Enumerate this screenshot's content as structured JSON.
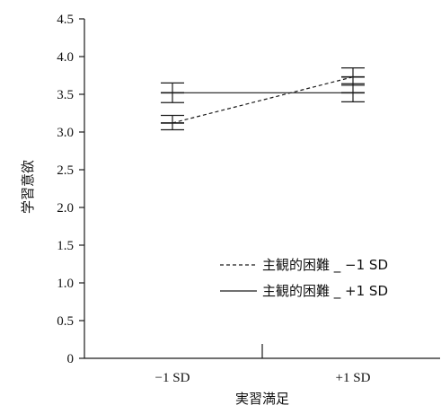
{
  "chart_data": {
    "type": "line",
    "title": "",
    "xlabel": "実習満足",
    "ylabel": "学習意欲",
    "categories": [
      "−1 SD",
      "+1 SD"
    ],
    "yticks": [
      "0",
      "0.5",
      "1.0",
      "1.5",
      "2.0",
      "2.5",
      "3.0",
      "3.5",
      "4.0",
      "4.5"
    ],
    "ylim": [
      0,
      4.5
    ],
    "grid": false,
    "legend_position": "bottom-right",
    "series": [
      {
        "name": "主観的困難 _ −1 SD",
        "line_style": "dashed",
        "values": [
          3.12,
          3.73
        ],
        "error_low": [
          3.03,
          3.62
        ],
        "error_high": [
          3.22,
          3.85
        ]
      },
      {
        "name": "主観的困難 _ +1 SD",
        "line_style": "solid",
        "values": [
          3.52,
          3.52
        ],
        "error_low": [
          3.39,
          3.4
        ],
        "error_high": [
          3.65,
          3.64
        ]
      }
    ],
    "colors": {
      "line": "#1a1a1a",
      "axis": "#1a1a1a"
    }
  }
}
